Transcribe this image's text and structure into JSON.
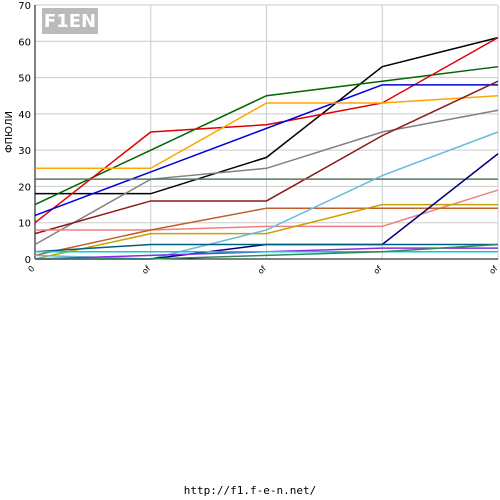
{
  "logo": "F1EN",
  "footer": "http://f1.f-e-n.net/",
  "chart_data": {
    "type": "line",
    "y_label": "ФПЮЛИ",
    "categories": [
      "0",
      "of",
      "of",
      "of",
      "of"
    ],
    "ylim": [
      0,
      70
    ],
    "yticks": [
      0,
      10,
      20,
      30,
      40,
      50,
      60,
      70
    ],
    "grid": true,
    "series": [
      {
        "color": "#000000",
        "values": [
          18,
          18,
          28,
          53,
          61
        ]
      },
      {
        "color": "#006400",
        "values": [
          15,
          30,
          45,
          49,
          53
        ]
      },
      {
        "color": "#e00000",
        "values": [
          10,
          35,
          37,
          43,
          61
        ]
      },
      {
        "color": "#0000e0",
        "values": [
          12,
          24,
          36,
          48,
          48
        ]
      },
      {
        "color": "#ffa500",
        "values": [
          25,
          25,
          43,
          43,
          45
        ]
      },
      {
        "color": "#808080",
        "values": [
          4,
          22,
          25,
          35,
          41
        ]
      },
      {
        "color": "#8b1a1a",
        "values": [
          7,
          16,
          16,
          34,
          49
        ]
      },
      {
        "color": "#5a7a5a",
        "values": [
          22,
          22,
          22,
          22,
          22
        ]
      },
      {
        "color": "#f08080",
        "values": [
          8,
          8,
          9,
          9,
          19
        ]
      },
      {
        "color": "#c0602a",
        "values": [
          1,
          8,
          14,
          14,
          14
        ]
      },
      {
        "color": "#c8a000",
        "values": [
          0,
          7,
          7,
          15,
          15
        ]
      },
      {
        "color": "#66bbdd",
        "values": [
          1,
          0,
          8,
          23,
          35
        ]
      },
      {
        "color": "#000080",
        "values": [
          0,
          0,
          4,
          4,
          29
        ]
      },
      {
        "color": "#006080",
        "values": [
          2,
          4,
          4,
          4,
          4
        ]
      },
      {
        "color": "#8a2be2",
        "values": [
          0,
          1,
          2,
          3,
          3
        ]
      },
      {
        "color": "#00d0d0",
        "values": [
          2,
          2,
          2,
          2,
          2
        ]
      },
      {
        "color": "#2e8b57",
        "values": [
          0,
          0,
          1,
          2,
          4
        ]
      }
    ]
  }
}
